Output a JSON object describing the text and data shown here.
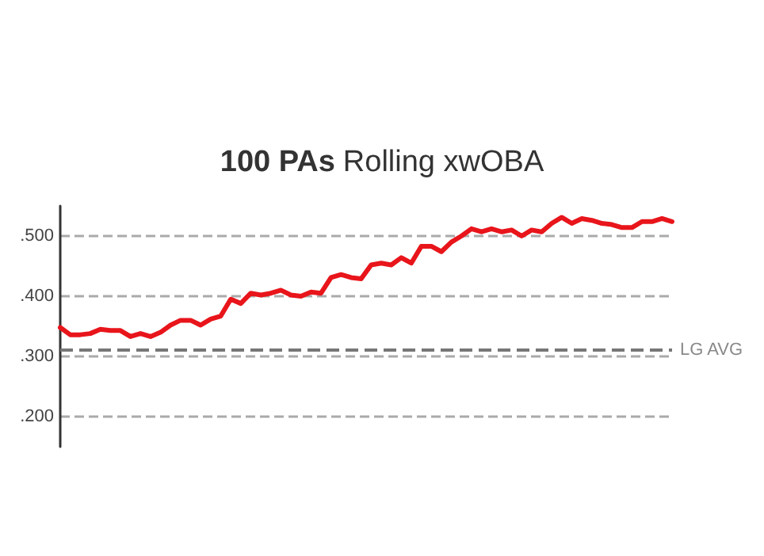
{
  "chart_data": {
    "type": "line",
    "title": "100 PAs Rolling xwOBA",
    "categories": [
      null,
      null,
      null,
      null,
      null,
      null,
      null,
      null,
      null,
      null,
      null,
      null,
      null,
      null,
      null,
      null,
      null,
      null,
      null,
      null,
      null,
      null,
      null,
      null,
      null,
      null,
      null,
      null,
      null,
      null,
      null,
      null,
      null,
      null,
      null,
      null,
      null,
      null,
      null,
      null,
      null,
      null,
      null,
      null,
      null,
      null,
      null,
      null,
      null,
      null,
      null,
      null,
      null,
      null,
      null,
      null,
      null,
      null,
      null,
      null,
      null,
      null
    ],
    "series": [
      {
        "color": "#e8151b",
        "values": [
          0.348,
          0.336,
          0.336,
          0.338,
          0.345,
          0.343,
          0.343,
          0.333,
          0.338,
          0.333,
          0.34,
          0.352,
          0.36,
          0.36,
          0.352,
          0.362,
          0.367,
          0.395,
          0.388,
          0.405,
          0.402,
          0.405,
          0.41,
          0.402,
          0.4,
          0.407,
          0.405,
          0.431,
          0.436,
          0.431,
          0.429,
          0.452,
          0.455,
          0.452,
          0.464,
          0.455,
          0.483,
          0.483,
          0.474,
          0.49,
          0.5,
          0.512,
          0.507,
          0.512,
          0.507,
          0.51,
          0.5,
          0.51,
          0.507,
          0.521,
          0.531,
          0.521,
          0.529,
          0.526,
          0.521,
          0.519,
          0.514,
          0.514,
          0.524,
          0.524,
          0.529,
          0.524
        ]
      }
    ],
    "ylim": [
      0.15,
      0.55
    ],
    "yticks": [
      {
        "value": 0.2,
        "label": ".200"
      },
      {
        "value": 0.3,
        "label": ".300"
      },
      {
        "value": 0.4,
        "label": ".400"
      },
      {
        "value": 0.5,
        "label": ".500"
      }
    ],
    "grid": "y",
    "line_style": "solid",
    "tick_labels": "y",
    "ref_lines": [
      {
        "axis": "y",
        "value": 0.31,
        "label": "LG AVG",
        "color": "#777777",
        "line_style": "dashed"
      }
    ]
  }
}
